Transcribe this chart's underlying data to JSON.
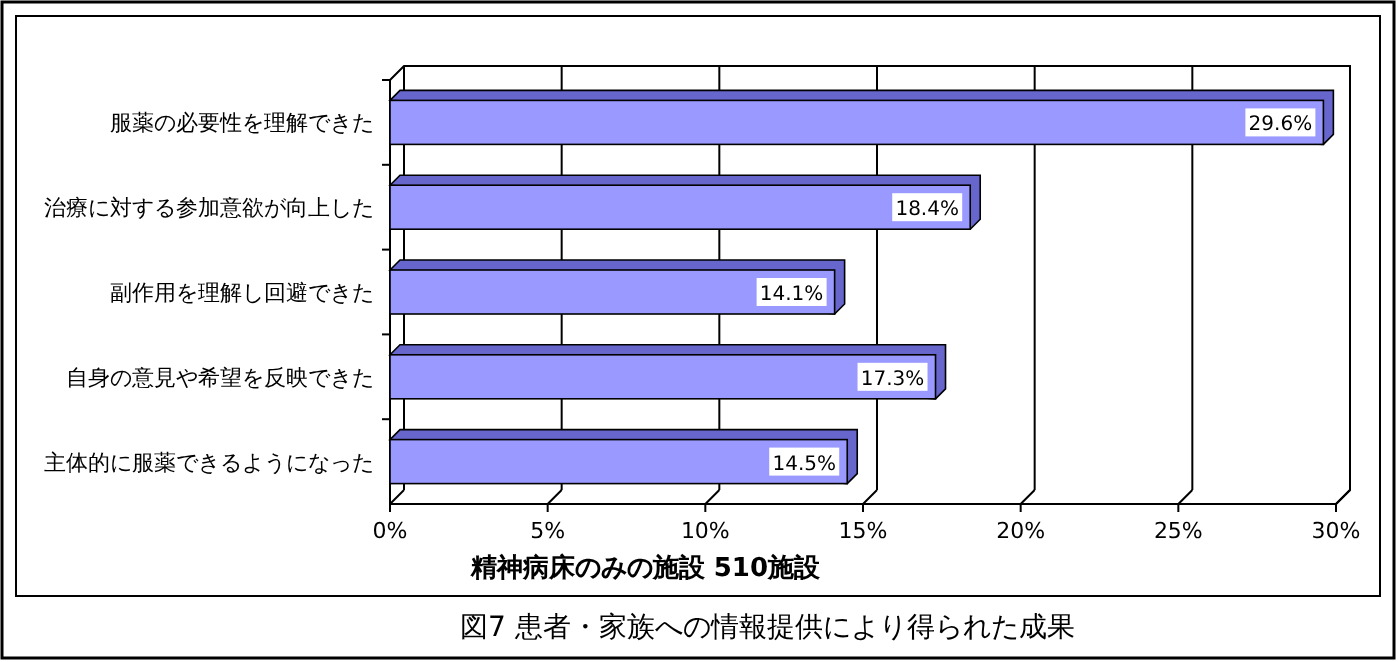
{
  "chart_data": {
    "type": "bar",
    "orientation": "horizontal",
    "title": "図7  患者・家族への情報提供により得られた成果",
    "xlabel": "精神病床のみの施設  510施設",
    "categories": [
      "服薬の必要性を理解できた",
      "治療に対する参加意欲が向上した",
      "副作用を理解し回避できた",
      "自身の意見や希望を反映できた",
      "主体的に服薬できるようになった"
    ],
    "values": [
      29.6,
      18.4,
      14.1,
      17.3,
      14.5
    ],
    "value_labels": [
      "29.6%",
      "18.4%",
      "14.1%",
      "17.3%",
      "14.5%"
    ],
    "color": "#9999ff",
    "xlim": [
      0,
      30
    ],
    "xticks": [
      {
        "value": 0,
        "label": "0%"
      },
      {
        "value": 5,
        "label": "5%"
      },
      {
        "value": 10,
        "label": "10%"
      },
      {
        "value": 15,
        "label": "15%"
      },
      {
        "value": 20,
        "label": "20%"
      },
      {
        "value": 25,
        "label": "25%"
      },
      {
        "value": 30,
        "label": "30%"
      }
    ],
    "grid": "x"
  }
}
